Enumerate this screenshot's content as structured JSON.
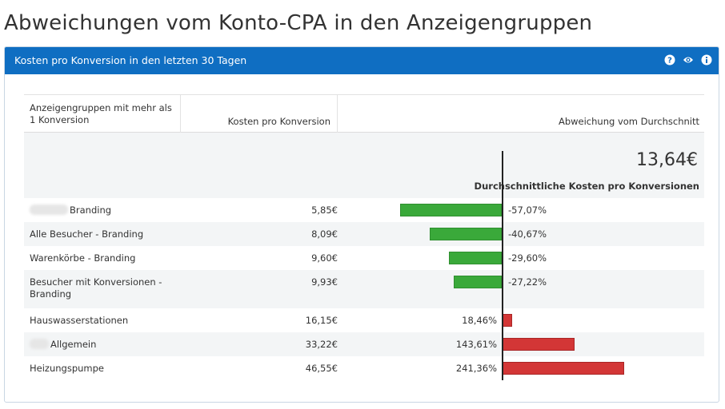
{
  "page_title": "Abweichungen vom Konto-CPA in den Anzeigengruppen",
  "panel": {
    "title": "Kosten pro Konversion in den letzten 30 Tagen",
    "icons": [
      "help-icon",
      "eye-icon",
      "info-icon"
    ]
  },
  "table": {
    "headers": {
      "group": "Anzeigengruppen mit mehr als 1 Konversion",
      "cost": "Kosten pro Konversion",
      "deviation": "Abweichung vom Durchschnitt"
    },
    "average": {
      "value": "13,64€",
      "label": "Durchschnittliche Kosten pro Konversionen"
    },
    "rows": [
      {
        "name": "Branding",
        "name_redacted": true,
        "cost": "5,85€",
        "deviation": "-57,07%",
        "deviation_value": -57.07
      },
      {
        "name": "Alle Besucher - Branding",
        "name_redacted": false,
        "cost": "8,09€",
        "deviation": "-40,67%",
        "deviation_value": -40.67
      },
      {
        "name": "Warenkörbe - Branding",
        "name_redacted": false,
        "cost": "9,60€",
        "deviation": "-29,60%",
        "deviation_value": -29.6
      },
      {
        "name": "Besucher mit Konversionen - Branding",
        "name_redacted": false,
        "cost": "9,93€",
        "deviation": "-27,22%",
        "deviation_value": -27.22
      },
      {
        "name": "Hauswasserstationen",
        "name_redacted": false,
        "cost": "16,15€",
        "deviation": "18,46%",
        "deviation_value": 18.46
      },
      {
        "name": "Allgemein",
        "name_redacted": true,
        "cost": "33,22€",
        "deviation": "143,61%",
        "deviation_value": 143.61
      },
      {
        "name": "Heizungspumpe",
        "name_redacted": false,
        "cost": "46,55€",
        "deviation": "241,36%",
        "deviation_value": 241.36
      }
    ]
  },
  "colors": {
    "header_bg": "#0f6ec2",
    "negative_bar": "#3aa93a",
    "positive_bar": "#d33636"
  }
}
